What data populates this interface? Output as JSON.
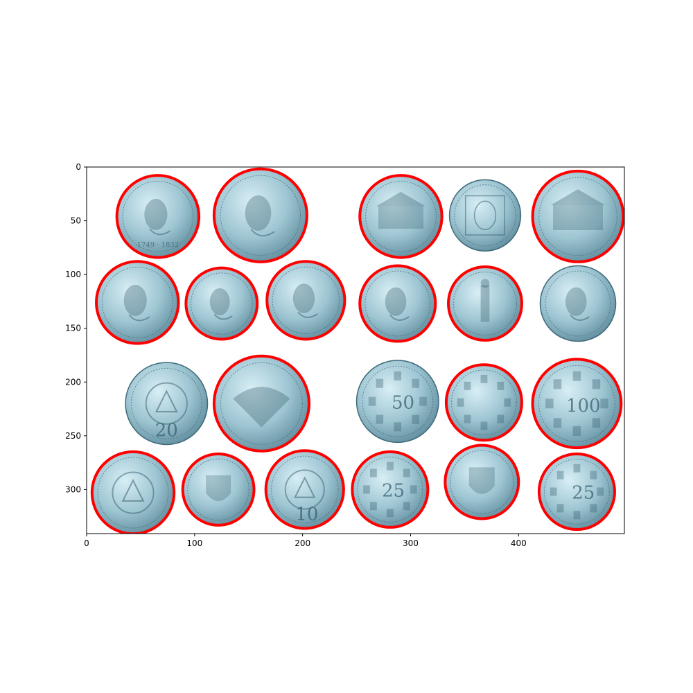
{
  "chart_data": {
    "type": "scatter",
    "description_kind": "image-with-circle-overlay",
    "xlim": [
      0,
      498
    ],
    "ylim": [
      341,
      0
    ],
    "x_ticks": [
      0,
      100,
      200,
      300,
      400
    ],
    "y_ticks": [
      0,
      50,
      100,
      150,
      200,
      250,
      300
    ],
    "grid": false,
    "coins": [
      {
        "x": 66,
        "y": 46,
        "r": 38,
        "detected": true,
        "motif": "portrait"
      },
      {
        "x": 161,
        "y": 45,
        "r": 43,
        "detected": true,
        "motif": "portrait"
      },
      {
        "x": 291,
        "y": 46,
        "r": 38,
        "detected": true,
        "motif": "building"
      },
      {
        "x": 369,
        "y": 45,
        "r": 33,
        "detected": false,
        "motif": "face"
      },
      {
        "x": 455,
        "y": 46,
        "r": 42,
        "detected": true,
        "motif": "building"
      },
      {
        "x": 47,
        "y": 126,
        "r": 38,
        "detected": true,
        "motif": "portrait"
      },
      {
        "x": 125,
        "y": 127,
        "r": 33,
        "detected": true,
        "motif": "portrait"
      },
      {
        "x": 203,
        "y": 124,
        "r": 36,
        "detected": true,
        "motif": "portrait"
      },
      {
        "x": 288,
        "y": 127,
        "r": 35,
        "detected": true,
        "motif": "portrait"
      },
      {
        "x": 369,
        "y": 127,
        "r": 34,
        "detected": true,
        "motif": "figure"
      },
      {
        "x": 455,
        "y": 127,
        "r": 35,
        "detected": false,
        "motif": "portrait"
      },
      {
        "x": 74,
        "y": 220,
        "r": 38,
        "detected": false,
        "motif": "emblem"
      },
      {
        "x": 162,
        "y": 220,
        "r": 44,
        "detected": true,
        "motif": "eagle"
      },
      {
        "x": 288,
        "y": 218,
        "r": 38,
        "detected": false,
        "motif": "shields"
      },
      {
        "x": 368,
        "y": 219,
        "r": 35,
        "detected": true,
        "motif": "shields"
      },
      {
        "x": 454,
        "y": 220,
        "r": 41,
        "detected": true,
        "motif": "shields"
      },
      {
        "x": 43,
        "y": 303,
        "r": 38,
        "detected": true,
        "motif": "emblem"
      },
      {
        "x": 122,
        "y": 300,
        "r": 33,
        "detected": true,
        "motif": "crest"
      },
      {
        "x": 202,
        "y": 300,
        "r": 36,
        "detected": true,
        "motif": "emblem"
      },
      {
        "x": 281,
        "y": 300,
        "r": 35,
        "detected": true,
        "motif": "shields"
      },
      {
        "x": 366,
        "y": 293,
        "r": 34,
        "detected": true,
        "motif": "crest"
      },
      {
        "x": 454,
        "y": 302,
        "r": 35,
        "detected": true,
        "motif": "shields"
      }
    ],
    "coin_labels": [
      {
        "x": 66,
        "y": 73,
        "text": "1749 · 1832"
      },
      {
        "x": 293,
        "y": 220,
        "text": "50"
      },
      {
        "x": 460,
        "y": 223,
        "text": "100"
      },
      {
        "x": 284,
        "y": 302,
        "text": "25"
      },
      {
        "x": 460,
        "y": 304,
        "text": "25"
      },
      {
        "x": 204,
        "y": 324,
        "text": "10"
      },
      {
        "x": 74,
        "y": 246,
        "text": "20"
      }
    ]
  },
  "colors": {
    "background": "#ffffff",
    "axes": "#000000",
    "circle": "#ff0000",
    "coin_light": "#d8eef5",
    "coin_mid": "#9fc6d3",
    "coin_dark": "#5f8c9c",
    "coin_edge": "#3d6a7a",
    "relief": "#365f6e"
  }
}
